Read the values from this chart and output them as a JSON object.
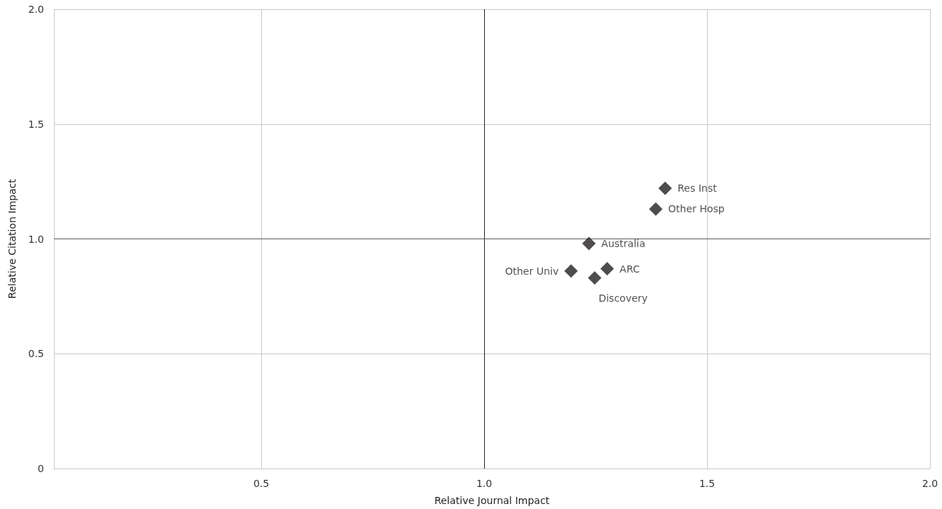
{
  "chart_data": {
    "type": "scatter",
    "xlabel": "Relative Journal Impact",
    "ylabel": "Relative Citation Impact",
    "x": [
      1.406,
      1.385,
      1.235,
      1.276,
      1.195,
      1.248
    ],
    "values": [
      1.22,
      1.13,
      0.98,
      0.87,
      0.86,
      0.83
    ],
    "color": "#231f20",
    "marker": "diamond",
    "xlim": [
      0.035,
      2
    ],
    "xticks": [
      0.5,
      {
        "value": 1,
        "label": "1.0"
      },
      1.5,
      {
        "value": 2,
        "label": "2.0"
      }
    ],
    "ylim": [
      0,
      2
    ],
    "yticks": [
      0,
      0.5,
      {
        "value": 1,
        "label": "1.0"
      },
      1.5,
      {
        "value": 2,
        "label": "2.0"
      }
    ],
    "grid": true,
    "ref_lines": [
      {
        "axis": "x",
        "value": 1,
        "color": "#231f20"
      },
      {
        "axis": "y",
        "value": 1,
        "color": "#595959"
      }
    ],
    "annotations": [
      {
        "text": "Res Inst",
        "x": 1.406,
        "y": 1.22
      },
      {
        "text": "Other Hosp",
        "x": 1.385,
        "y": 1.13
      },
      {
        "text": "Australia",
        "x": 1.235,
        "y": 0.98
      },
      {
        "text": "ARC",
        "x": 1.276,
        "y": 0.87
      },
      {
        "text": "Other Univ",
        "x": 1.195,
        "y": 0.86
      },
      {
        "text": "Discovery",
        "x": 1.248,
        "y": 0.83
      }
    ]
  }
}
